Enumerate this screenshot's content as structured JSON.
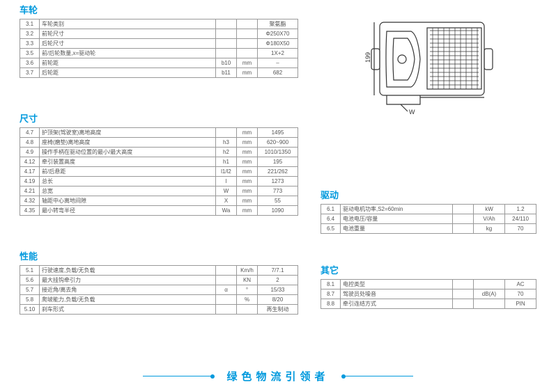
{
  "colors": {
    "accent": "#0099dd",
    "border": "#999",
    "text": "#555"
  },
  "footer_slogan": "绿色物流引领者",
  "sections": {
    "wheels": {
      "title": "车轮",
      "rows": [
        {
          "idx": "3.1",
          "name": "车轮类别",
          "sym": "",
          "unit": "",
          "val": "聚氨酯"
        },
        {
          "idx": "3.2",
          "name": "前轮尺寸",
          "sym": "",
          "unit": "",
          "val": "Φ250X70"
        },
        {
          "idx": "3.3",
          "name": "后轮尺寸",
          "sym": "",
          "unit": "",
          "val": "Φ180X50"
        },
        {
          "idx": "3.5",
          "name": "前/后轮数量,x=驱动轮",
          "sym": "",
          "unit": "",
          "val": "1X+2"
        },
        {
          "idx": "3.6",
          "name": "前轮距",
          "sym": "b10",
          "unit": "mm",
          "val": "–"
        },
        {
          "idx": "3.7",
          "name": "后轮距",
          "sym": "b11",
          "unit": "mm",
          "val": "682"
        }
      ]
    },
    "dims": {
      "title": "尺寸",
      "rows": [
        {
          "idx": "4.7",
          "name": "护顶架(驾驶室)离地高度",
          "sym": "",
          "unit": "mm",
          "val": "1495"
        },
        {
          "idx": "4.8",
          "name": "座椅(磨垫)离地高度",
          "sym": "h3",
          "unit": "mm",
          "val": "620~900"
        },
        {
          "idx": "4.9",
          "name": "操作手柄在驱动位置的最小/最大高度",
          "sym": "h2",
          "unit": "mm",
          "val": "1010/1350"
        },
        {
          "idx": "4.12",
          "name": "牵引装置高度",
          "sym": "h1",
          "unit": "mm",
          "val": "195"
        },
        {
          "idx": "4.17",
          "name": "前/后悬距",
          "sym": "l1/l2",
          "unit": "mm",
          "val": "221/262"
        },
        {
          "idx": "4.19",
          "name": "总长",
          "sym": "l",
          "unit": "mm",
          "val": "1273"
        },
        {
          "idx": "4.21",
          "name": "总宽",
          "sym": "W",
          "unit": "mm",
          "val": "773"
        },
        {
          "idx": "4.32",
          "name": "轴距中心离地间隙",
          "sym": "X",
          "unit": "mm",
          "val": "55"
        },
        {
          "idx": "4.35",
          "name": "最小转弯半径",
          "sym": "Wa",
          "unit": "mm",
          "val": "1090"
        }
      ]
    },
    "perf": {
      "title": "性能",
      "rows": [
        {
          "idx": "5.1",
          "name": "行驶速度,负载/无负载",
          "sym": "",
          "unit": "Km/h",
          "val": "7/7.1"
        },
        {
          "idx": "5.6",
          "name": "最大挂钩牵引力",
          "sym": "",
          "unit": "KN",
          "val": "2"
        },
        {
          "idx": "5.7",
          "name": "接近角/离去角",
          "sym": "α",
          "unit": "°",
          "val": "15/33"
        },
        {
          "idx": "5.8",
          "name": "爬坡能力,负载/无负载",
          "sym": "",
          "unit": "%",
          "val": "8/20"
        },
        {
          "idx": "5.10",
          "name": "刹车形式",
          "sym": "",
          "unit": "",
          "val": "再生制动"
        }
      ]
    },
    "drive": {
      "title": "驱动",
      "rows": [
        {
          "idx": "6.1",
          "name": "驱动电机功率,S2=60min",
          "sym": "",
          "unit": "kW",
          "val": "1.2"
        },
        {
          "idx": "6.4",
          "name": "电池电压/容量",
          "sym": "",
          "unit": "V/Ah",
          "val": "24/110"
        },
        {
          "idx": "6.5",
          "name": "电池重量",
          "sym": "",
          "unit": "kg",
          "val": "70"
        }
      ]
    },
    "other": {
      "title": "其它",
      "rows": [
        {
          "idx": "8.1",
          "name": "电控类型",
          "sym": "",
          "unit": "",
          "val": "AC"
        },
        {
          "idx": "8.7",
          "name": "驾驶员处噪音",
          "sym": "",
          "unit": "dB(A)",
          "val": "70"
        },
        {
          "idx": "8.8",
          "name": "牵引连结方式",
          "sym": "",
          "unit": "",
          "val": "PIN"
        }
      ]
    }
  }
}
